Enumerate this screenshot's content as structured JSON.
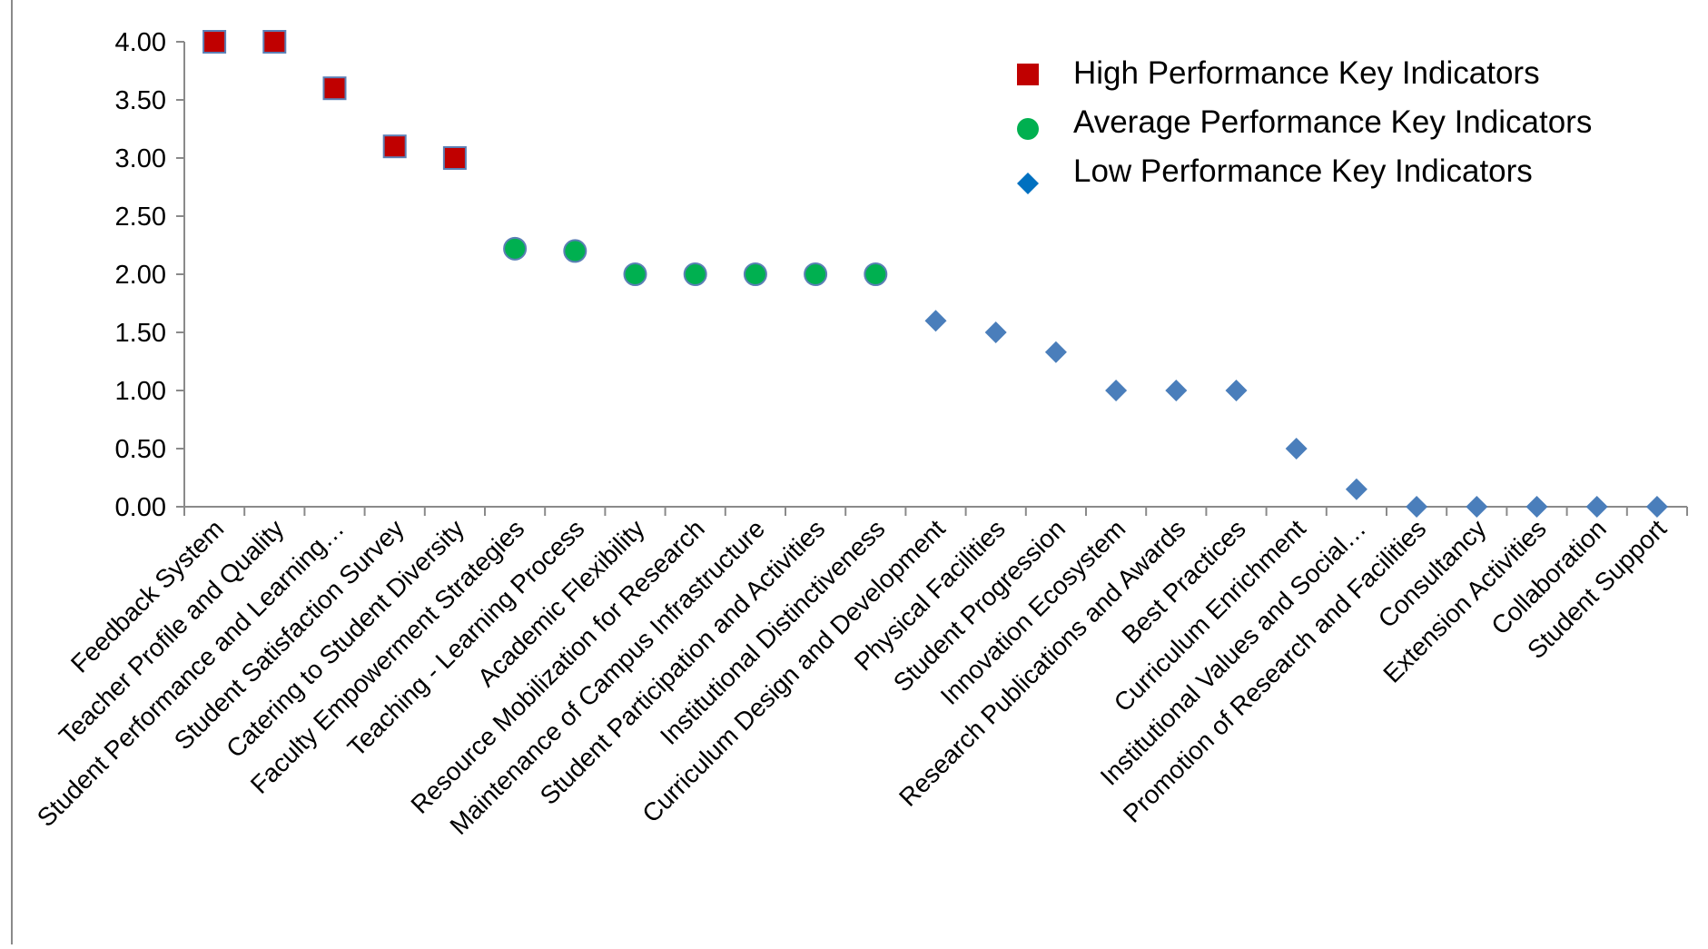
{
  "chart_data": {
    "type": "scatter",
    "ylim": [
      0,
      4
    ],
    "yticks": [
      "0.00",
      "0.50",
      "1.00",
      "1.50",
      "2.00",
      "2.50",
      "3.00",
      "3.50",
      "4.00"
    ],
    "categories": [
      "Feedback System",
      "Teacher Profile and Quality",
      "Student Performance and Learning…",
      "Student Satisfaction Survey",
      "Catering to Student Diversity",
      "Faculty Empowerment Strategies",
      "Teaching - Learning Process",
      "Academic Flexibility",
      "Resource Mobilization for Research",
      "Maintenance of Campus Infrastructure",
      "Student Participation and Activities",
      "Institutional Distinctiveness",
      "Curriculum Design and Development",
      "Physical Facilities",
      "Student Progression",
      "Innovation Ecosystem",
      "Research Publications and Awards",
      "Best Practices",
      "Curriculum Enrichment",
      "Institutional Values and Social…",
      "Promotion of Research and Facilities",
      "Consultancy",
      "Extension Activities",
      "Collaboration",
      "Student Support"
    ],
    "series": [
      {
        "name": "High Performance Key Indicators",
        "marker": "square",
        "color": "#c00000",
        "stroke": "#5b7fb5",
        "points": [
          [
            0,
            4.0
          ],
          [
            1,
            4.0
          ],
          [
            2,
            3.6
          ],
          [
            3,
            3.1
          ],
          [
            4,
            3.0
          ]
        ]
      },
      {
        "name": "Average Performance Key Indicators",
        "marker": "circle",
        "color": "#00b050",
        "stroke": "#5b7fb5",
        "points": [
          [
            5,
            2.22
          ],
          [
            6,
            2.2
          ],
          [
            7,
            2.0
          ],
          [
            8,
            2.0
          ],
          [
            9,
            2.0
          ],
          [
            10,
            2.0
          ],
          [
            11,
            2.0
          ]
        ]
      },
      {
        "name": "Low Performance Key Indicators",
        "marker": "diamond",
        "color": "#4a7ebb",
        "legend_color": "#0070c0",
        "points": [
          [
            12,
            1.6
          ],
          [
            13,
            1.5
          ],
          [
            14,
            1.33
          ],
          [
            15,
            1.0
          ],
          [
            16,
            1.0
          ],
          [
            17,
            1.0
          ],
          [
            18,
            0.5
          ],
          [
            19,
            0.15
          ],
          [
            20,
            0
          ],
          [
            21,
            0
          ],
          [
            22,
            0
          ],
          [
            23,
            0
          ],
          [
            24,
            0
          ]
        ]
      }
    ],
    "legend": {
      "position": "top-right"
    },
    "grid": false
  }
}
